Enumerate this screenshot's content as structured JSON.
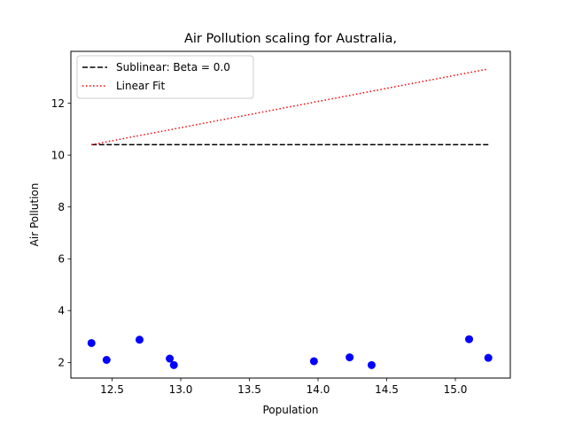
{
  "chart_data": {
    "type": "scatter",
    "title": "Air Pollution scaling for Australia,",
    "xlabel": "Population",
    "ylabel": "Air Pollution",
    "xlim": [
      12.2,
      15.4
    ],
    "ylim": [
      1.4,
      14.0
    ],
    "xticks": [
      12.5,
      13.0,
      13.5,
      14.0,
      14.5,
      15.0
    ],
    "xtick_labels": [
      "12.5",
      "13.0",
      "13.5",
      "14.0",
      "14.5",
      "15.0"
    ],
    "yticks": [
      2,
      4,
      6,
      8,
      10,
      12
    ],
    "ytick_labels": [
      "2",
      "4",
      "6",
      "8",
      "10",
      "12"
    ],
    "grid": false,
    "legend_position": "upper-left",
    "points": {
      "color": "#0000ff",
      "x": [
        12.35,
        12.46,
        12.7,
        12.92,
        12.95,
        13.97,
        14.23,
        14.39,
        15.1,
        15.24
      ],
      "y": [
        2.75,
        2.1,
        2.88,
        2.15,
        1.9,
        2.05,
        2.2,
        1.9,
        2.9,
        2.18
      ]
    },
    "series": [
      {
        "name": "Sublinear: Beta = 0.0",
        "style": "dashed",
        "color": "#000000",
        "x": [
          12.35,
          15.24
        ],
        "y": [
          10.4,
          10.4
        ]
      },
      {
        "name": "Linear Fit",
        "style": "dotted",
        "color": "#ff0000",
        "x": [
          12.35,
          15.24
        ],
        "y": [
          10.4,
          13.32
        ]
      }
    ]
  }
}
